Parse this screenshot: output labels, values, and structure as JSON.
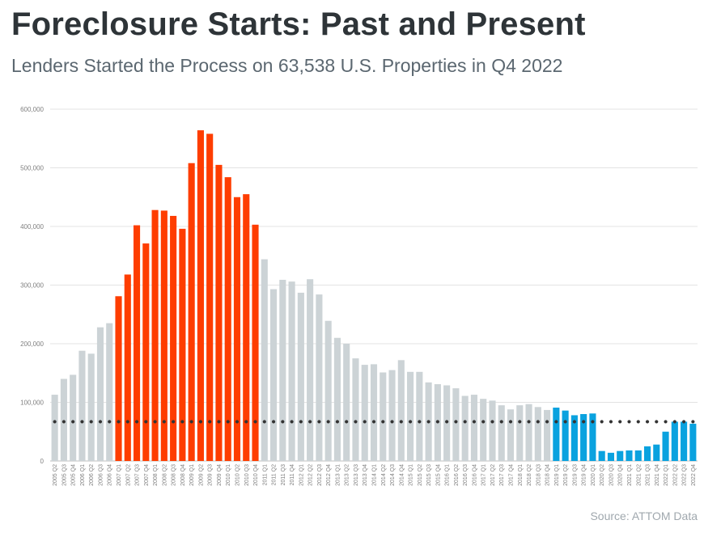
{
  "title": "Foreclosure Starts: Past and Present",
  "subtitle": "Lenders Started the Process on 63,538 U.S. Properties in Q4 2022",
  "source": "Source: ATTOM Data",
  "colors": {
    "normal": "#ccd3d6",
    "crisis": "#fe3d00",
    "recent": "#0aa2df",
    "reference": "#333333",
    "grid": "#e3e3e3",
    "tick": "#7f7f7f"
  },
  "chart_data": {
    "type": "bar",
    "title": "",
    "xlabel": "",
    "ylabel": "",
    "ylim": [
      0,
      600000
    ],
    "yticks": [
      0,
      100000,
      200000,
      300000,
      400000,
      500000,
      600000
    ],
    "ytick_labels": [
      "0",
      "100,000",
      "200,000",
      "300,000",
      "400,000",
      "500,000",
      "600,000"
    ],
    "grid": true,
    "legend": "none",
    "categories": [
      "2005 Q2",
      "2005 Q3",
      "2005 Q4",
      "2006 Q1",
      "2006 Q2",
      "2006 Q3",
      "2006 Q4",
      "2007 Q1",
      "2007 Q2",
      "2007 Q3",
      "2007 Q4",
      "2008 Q1",
      "2008 Q2",
      "2008 Q3",
      "2008 Q4",
      "2009 Q1",
      "2009 Q2",
      "2009 Q3",
      "2009 Q4",
      "2010 Q1",
      "2010 Q2",
      "2010 Q3",
      "2010 Q4",
      "2011 Q1",
      "2011 Q2",
      "2011 Q3",
      "2011 Q4",
      "2012 Q1",
      "2012 Q2",
      "2012 Q3",
      "2012 Q4",
      "2013 Q1",
      "2013 Q2",
      "2013 Q3",
      "2013 Q4",
      "2014 Q1",
      "2014 Q2",
      "2014 Q3",
      "2014 Q4",
      "2015 Q1",
      "2015 Q2",
      "2015 Q3",
      "2015 Q4",
      "2016 Q1",
      "2016 Q2",
      "2016 Q3",
      "2016 Q4",
      "2017 Q1",
      "2017 Q2",
      "2017 Q3",
      "2017 Q4",
      "2018 Q1",
      "2018 Q2",
      "2018 Q3",
      "2018 Q4",
      "2019 Q1",
      "2019 Q2",
      "2019 Q3",
      "2019 Q4",
      "2020 Q1",
      "2020 Q2",
      "2020 Q3",
      "2020 Q4",
      "2021 Q1",
      "2021 Q2",
      "2021 Q3",
      "2021 Q4",
      "2022 Q1",
      "2022 Q2",
      "2022 Q3",
      "2022 Q4"
    ],
    "values": [
      113000,
      140000,
      147000,
      188000,
      183000,
      228000,
      235000,
      281000,
      318000,
      402000,
      371000,
      428000,
      427000,
      418000,
      396000,
      508000,
      564000,
      558000,
      505000,
      484000,
      450000,
      455000,
      403000,
      344000,
      293000,
      309000,
      306000,
      287000,
      310000,
      284000,
      239000,
      210000,
      200000,
      175000,
      164000,
      165000,
      151000,
      155000,
      172000,
      152000,
      152000,
      134000,
      131000,
      129000,
      124000,
      111000,
      113000,
      106000,
      103000,
      95000,
      88000,
      95000,
      97000,
      92000,
      87000,
      91000,
      86000,
      78000,
      80000,
      81000,
      17000,
      14000,
      17000,
      18000,
      18000,
      25000,
      28000,
      50000,
      67000,
      67000,
      63538
    ],
    "color_groups": [
      "normal",
      "normal",
      "normal",
      "normal",
      "normal",
      "normal",
      "normal",
      "crisis",
      "crisis",
      "crisis",
      "crisis",
      "crisis",
      "crisis",
      "crisis",
      "crisis",
      "crisis",
      "crisis",
      "crisis",
      "crisis",
      "crisis",
      "crisis",
      "crisis",
      "crisis",
      "normal",
      "normal",
      "normal",
      "normal",
      "normal",
      "normal",
      "normal",
      "normal",
      "normal",
      "normal",
      "normal",
      "normal",
      "normal",
      "normal",
      "normal",
      "normal",
      "normal",
      "normal",
      "normal",
      "normal",
      "normal",
      "normal",
      "normal",
      "normal",
      "normal",
      "normal",
      "normal",
      "normal",
      "normal",
      "normal",
      "normal",
      "normal",
      "recent",
      "recent",
      "recent",
      "recent",
      "recent",
      "recent",
      "recent",
      "recent",
      "recent",
      "recent",
      "recent",
      "recent",
      "recent",
      "recent",
      "recent",
      "recent"
    ],
    "reference_line": {
      "value": 67000,
      "style": "dotted"
    }
  }
}
